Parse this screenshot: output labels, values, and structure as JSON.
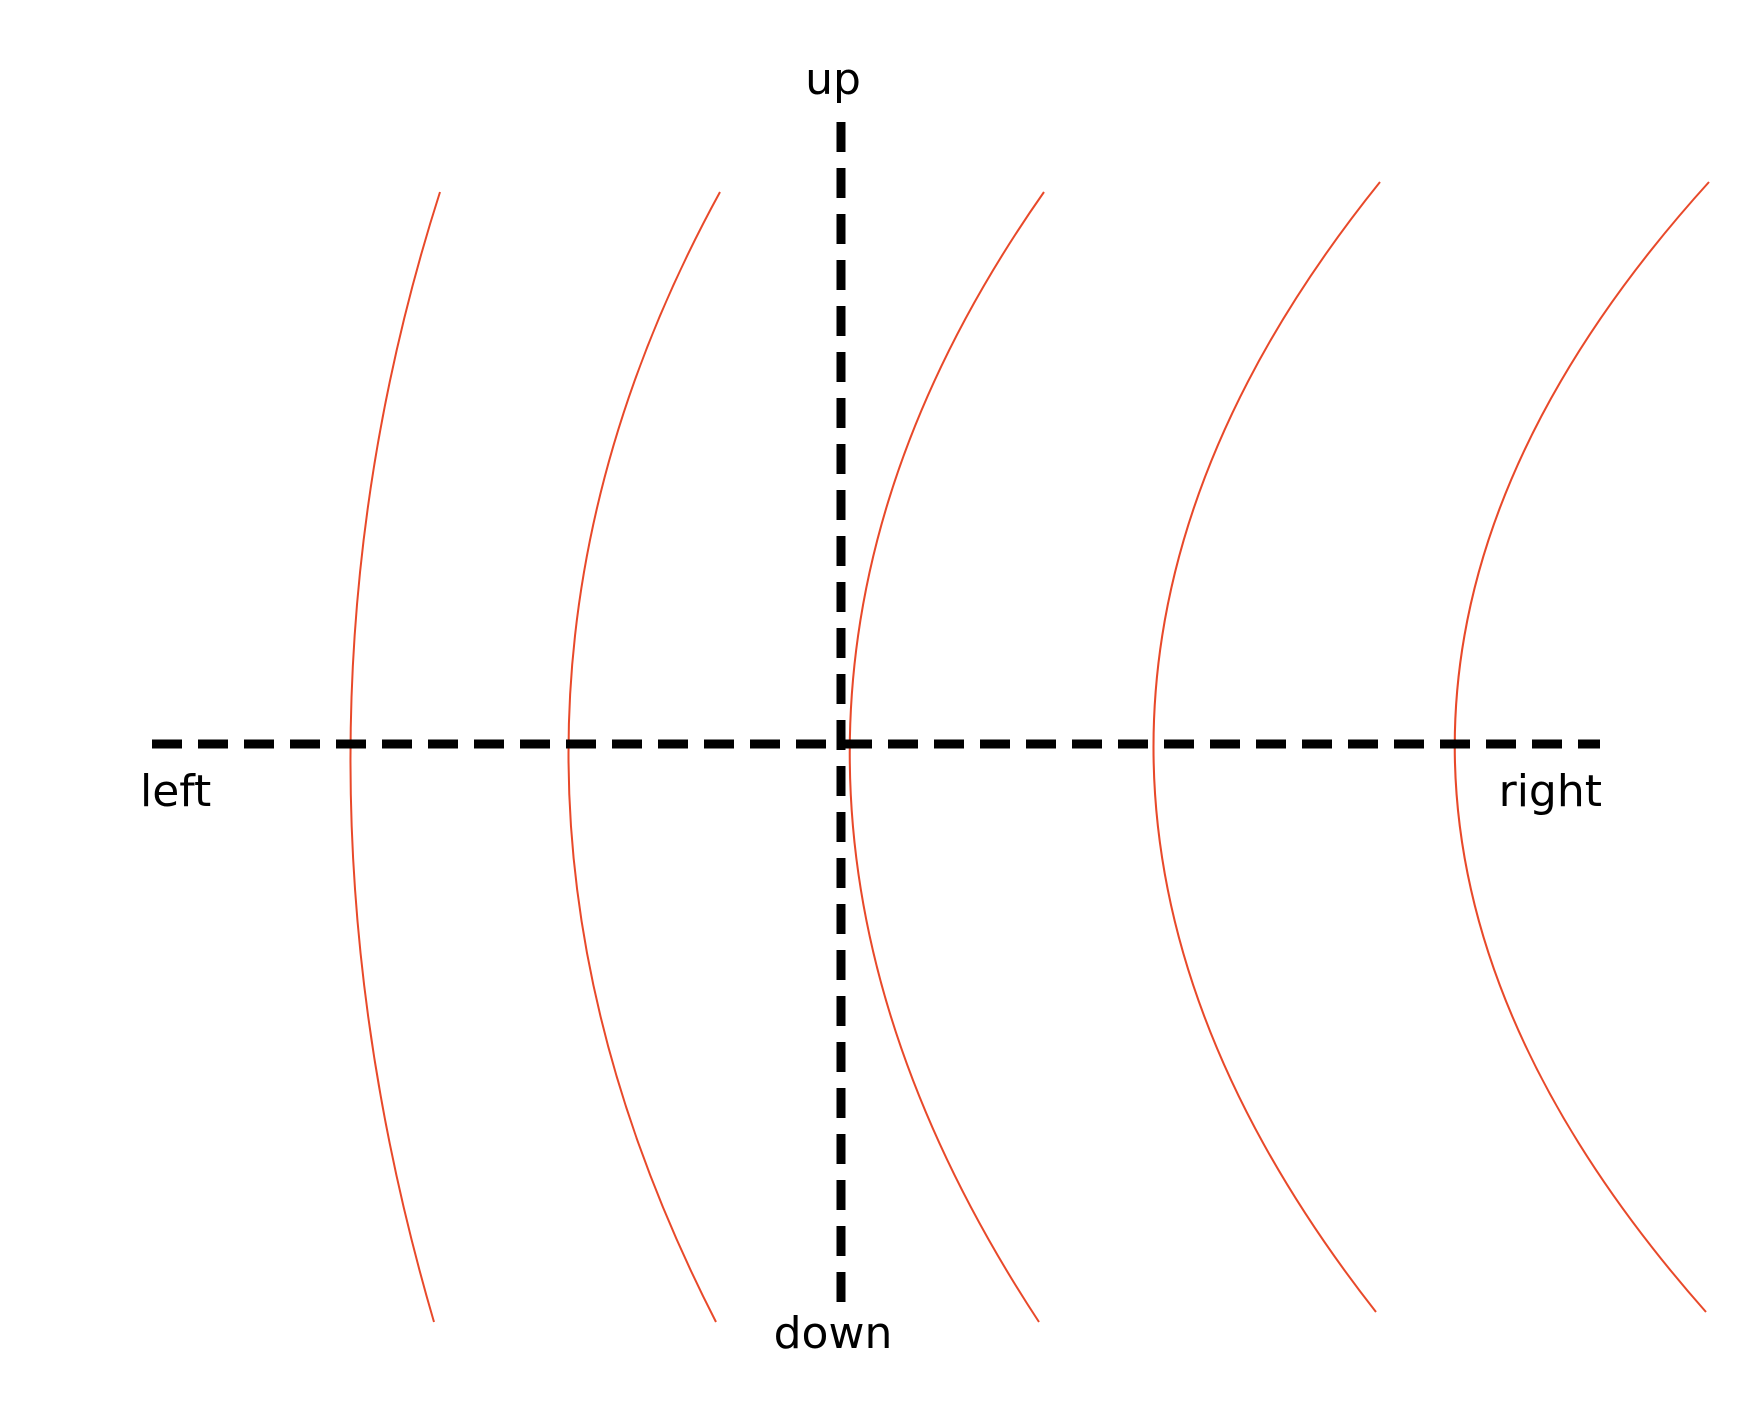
{
  "labels": {
    "up": "up",
    "down": "down",
    "left": "left",
    "right": "right"
  },
  "colors": {
    "axis": "#000000",
    "arcs": "#e8492a",
    "background": "#ffffff"
  },
  "arcs": {
    "count": 5,
    "shape": "curves bowing left, symmetric about the horizontal axis, increasingly curved toward the right"
  }
}
